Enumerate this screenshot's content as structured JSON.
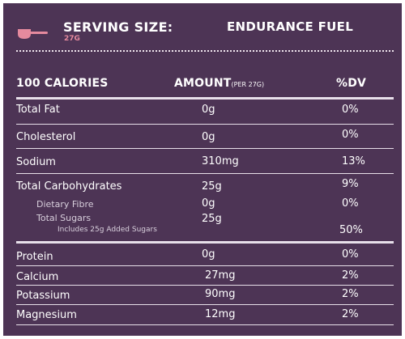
{
  "header": {
    "serving_size_label": "SERVING SIZE:",
    "serving_size_value": "27G",
    "product_name": "ENDURANCE FUEL",
    "scoop_icon": "scoop-icon"
  },
  "columns": {
    "calories": "100 CALORIES",
    "amount": "AMOUNT",
    "amount_note": "(PER 27G)",
    "dv": "%DV"
  },
  "rows": [
    {
      "name": "Total Fat",
      "amount": "0g",
      "dv": "0%"
    },
    {
      "name": "Cholesterol",
      "amount": "0g",
      "dv": "0%"
    },
    {
      "name": "Sodium",
      "amount": "310mg",
      "dv": "13%"
    },
    {
      "name": "Total Carbohydrates",
      "amount": "25g",
      "dv": "9%"
    },
    {
      "name": "Dietary Fibre",
      "amount": "0g",
      "dv": "0%"
    },
    {
      "name": "Total Sugars",
      "amount": "25g",
      "dv": ""
    },
    {
      "name": "Includes 25g Added Sugars",
      "amount": "",
      "dv": "50%"
    },
    {
      "name": "Protein",
      "amount": "0g",
      "dv": "0%"
    },
    {
      "name": "Calcium",
      "amount": "27mg",
      "dv": "2%"
    },
    {
      "name": "Potassium",
      "amount": "90mg",
      "dv": "2%"
    },
    {
      "name": "Magnesium",
      "amount": "12mg",
      "dv": "2%"
    }
  ],
  "colors": {
    "panel_background": "#4d3455",
    "accent_pink": "#e58a9e",
    "text": "#ffffff"
  }
}
